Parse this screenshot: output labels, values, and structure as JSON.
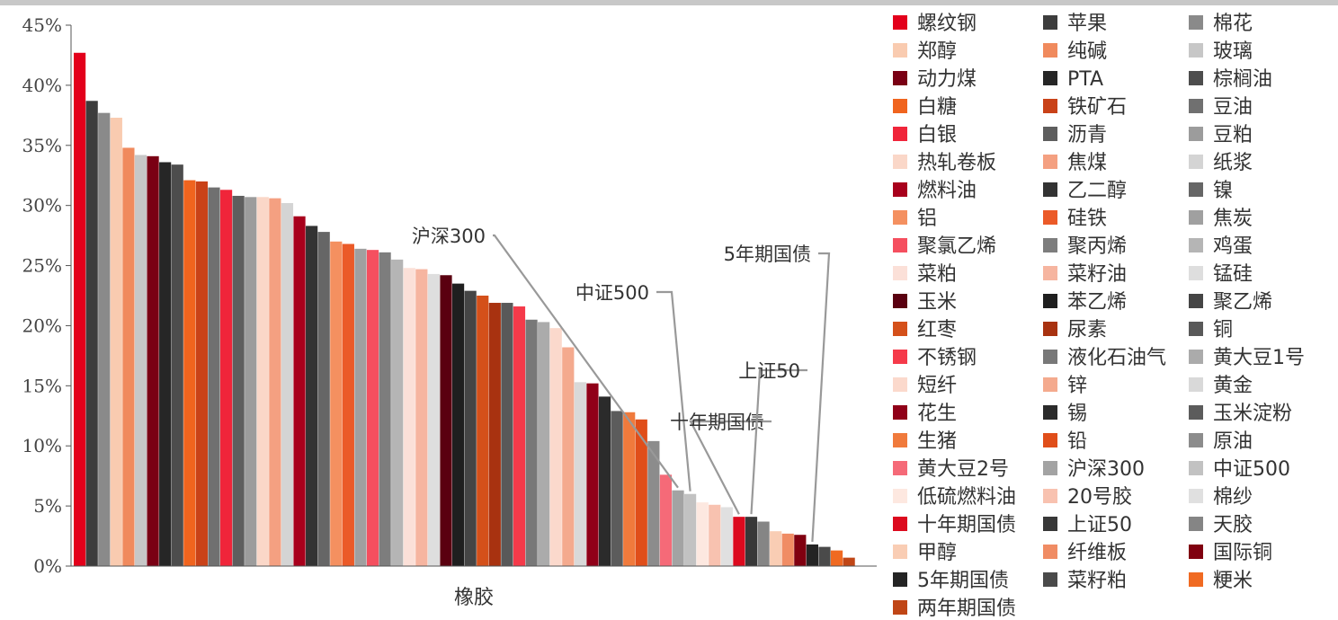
{
  "chart_data": {
    "type": "bar",
    "xlabel": "",
    "ylabel": "",
    "categories": [
      "橡胶"
    ],
    "ylim": [
      0,
      45
    ],
    "y_ticks": [
      "0%",
      "5%",
      "10%",
      "15%",
      "20%",
      "25%",
      "30%",
      "35%",
      "40%",
      "45%"
    ],
    "legend_position": "right",
    "grid": false,
    "series": [
      {
        "name": "螺纹钢",
        "value": 42.7,
        "color": "#e3001b"
      },
      {
        "name": "苹果",
        "value": 38.7,
        "color": "#3d3d3d"
      },
      {
        "name": "棉花",
        "value": 37.7,
        "color": "#8a8a8a"
      },
      {
        "name": "郑醇",
        "value": 37.3,
        "color": "#f9cbb0"
      },
      {
        "name": "纯碱",
        "value": 34.8,
        "color": "#f08a5d"
      },
      {
        "name": "玻璃",
        "value": 34.2,
        "color": "#c7c7c7"
      },
      {
        "name": "动力煤",
        "value": 34.1,
        "color": "#7a0014"
      },
      {
        "name": "PTA",
        "value": 33.6,
        "color": "#262626"
      },
      {
        "name": "棕榈油",
        "value": 33.4,
        "color": "#4d4d4d"
      },
      {
        "name": "白糖",
        "value": 32.1,
        "color": "#f0641e"
      },
      {
        "name": "铁矿石",
        "value": 32.0,
        "color": "#c94218"
      },
      {
        "name": "豆油",
        "value": 31.5,
        "color": "#707070"
      },
      {
        "name": "白银",
        "value": 31.3,
        "color": "#f0253a"
      },
      {
        "name": "沥青",
        "value": 30.8,
        "color": "#5e5e5e"
      },
      {
        "name": "豆粕",
        "value": 30.7,
        "color": "#9c9c9c"
      },
      {
        "name": "热轧卷板",
        "value": 30.7,
        "color": "#fad7c8"
      },
      {
        "name": "焦煤",
        "value": 30.6,
        "color": "#f4a081"
      },
      {
        "name": "纸浆",
        "value": 30.2,
        "color": "#d4d4d4"
      },
      {
        "name": "燃料油",
        "value": 29.1,
        "color": "#a8001c"
      },
      {
        "name": "乙二醇",
        "value": 28.3,
        "color": "#333333"
      },
      {
        "name": "镍",
        "value": 27.8,
        "color": "#666666"
      },
      {
        "name": "铝",
        "value": 27.0,
        "color": "#f49060"
      },
      {
        "name": "硅铁",
        "value": 26.8,
        "color": "#eb5a28"
      },
      {
        "name": "焦炭",
        "value": 26.4,
        "color": "#a0a0a0"
      },
      {
        "name": "聚氯乙烯",
        "value": 26.3,
        "color": "#f54f5f"
      },
      {
        "name": "聚丙烯",
        "value": 26.1,
        "color": "#7d7d7d"
      },
      {
        "name": "鸡蛋",
        "value": 25.5,
        "color": "#b5b5b5"
      },
      {
        "name": "菜粕",
        "value": 24.8,
        "color": "#fbe0d8"
      },
      {
        "name": "菜籽油",
        "value": 24.7,
        "color": "#f6b5a0"
      },
      {
        "name": "锰硅",
        "value": 24.3,
        "color": "#dedede"
      },
      {
        "name": "玉米",
        "value": 24.2,
        "color": "#5a0010"
      },
      {
        "name": "苯乙烯",
        "value": 23.5,
        "color": "#1f1f1f"
      },
      {
        "name": "聚乙烯",
        "value": 22.9,
        "color": "#454545"
      },
      {
        "name": "红枣",
        "value": 22.5,
        "color": "#d4501a"
      },
      {
        "name": "尿素",
        "value": 21.9,
        "color": "#a83210"
      },
      {
        "name": "铜",
        "value": 21.9,
        "color": "#595959"
      },
      {
        "name": "不锈钢",
        "value": 21.6,
        "color": "#f53a4a"
      },
      {
        "name": "液化石油气",
        "value": 20.5,
        "color": "#787878"
      },
      {
        "name": "黄大豆1号",
        "value": 20.3,
        "color": "#ababab"
      },
      {
        "name": "短纤",
        "value": 19.8,
        "color": "#fbd9cc"
      },
      {
        "name": "锌",
        "value": 18.2,
        "color": "#f4aa8e"
      },
      {
        "name": "黄金",
        "value": 15.3,
        "color": "#d9d9d9"
      },
      {
        "name": "花生",
        "value": 15.2,
        "color": "#900018"
      },
      {
        "name": "锡",
        "value": 14.1,
        "color": "#2b2b2b"
      },
      {
        "name": "玉米淀粉",
        "value": 12.9,
        "color": "#5c5c5c"
      },
      {
        "name": "生猪",
        "value": 12.8,
        "color": "#f07a3c"
      },
      {
        "name": "铅",
        "value": 12.2,
        "color": "#e04e1a"
      },
      {
        "name": "原油",
        "value": 10.4,
        "color": "#8c8c8c"
      },
      {
        "name": "黄大豆2号",
        "value": 7.6,
        "color": "#f56a78"
      },
      {
        "name": "沪深300",
        "value": 6.3,
        "color": "#a3a3a3"
      },
      {
        "name": "中证500",
        "value": 6.0,
        "color": "#c2c2c2"
      },
      {
        "name": "低硫燃料油",
        "value": 5.3,
        "color": "#fde8e0"
      },
      {
        "name": "20号胶",
        "value": 5.1,
        "color": "#f8c2b0"
      },
      {
        "name": "棉纱",
        "value": 4.9,
        "color": "#e0e0e0"
      },
      {
        "name": "十年期国债",
        "value": 4.1,
        "color": "#dc0a1e"
      },
      {
        "name": "上证50",
        "value": 4.1,
        "color": "#383838"
      },
      {
        "name": "天胶",
        "value": 3.7,
        "color": "#858585"
      },
      {
        "name": "甲醇",
        "value": 2.9,
        "color": "#f9cdb4"
      },
      {
        "name": "纤维板",
        "value": 2.7,
        "color": "#f08c64"
      },
      {
        "name": "国际铜",
        "value": 2.6,
        "color": "#800010"
      },
      {
        "name": "5年期国债",
        "value": 1.8,
        "color": "#242424"
      },
      {
        "name": "菜籽粕",
        "value": 1.6,
        "color": "#4a4a4a"
      },
      {
        "name": "粳米",
        "value": 1.3,
        "color": "#f06a22"
      },
      {
        "name": "两年期国债",
        "value": 0.7,
        "color": "#c04616"
      }
    ],
    "annotations": [
      {
        "text": "沪深300",
        "target": "沪深300"
      },
      {
        "text": "中证500",
        "target": "中证500"
      },
      {
        "text": "十年期国债",
        "target": "十年期国债"
      },
      {
        "text": "上证50",
        "target": "上证50"
      },
      {
        "text": "5年期国债",
        "target": "5年期国债"
      }
    ]
  }
}
